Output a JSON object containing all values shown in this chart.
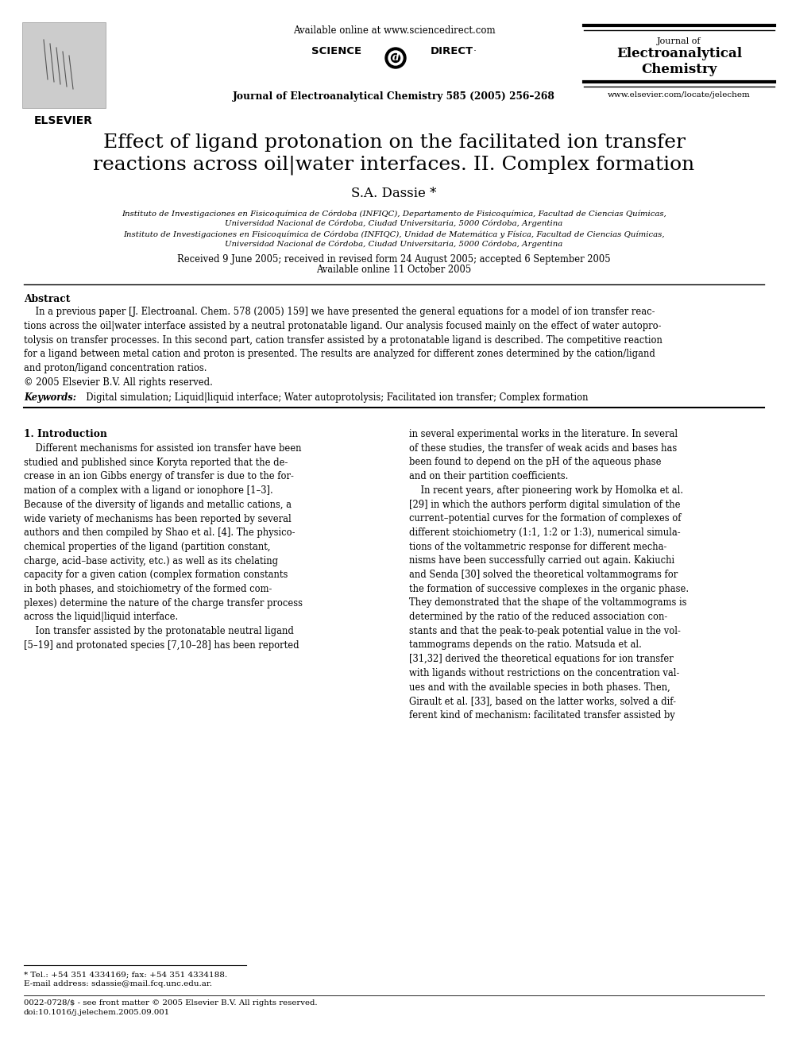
{
  "bg_color": "#ffffff",
  "title_line1": "Effect of ligand protonation on the facilitated ion transfer",
  "title_line2": "reactions across oil|water interfaces. II. Complex formation",
  "author": "S.A. Dassie *",
  "affil1_line1": "Instituto de Investigaciones en Fisicoquímica de Córdoba (INFIQC), Departamento de Fisicoquímica, Facultad de Ciencias Químicas,",
  "affil1_line2": "Universidad Nacional de Córdoba, Ciudad Universitaria, 5000 Córdoba, Argentina",
  "affil2_line1": "Instituto de Investigaciones en Fisicoquímica de Córdoba (INFIQC), Unidad de Matemática y Física, Facultad de Ciencias Químicas,",
  "affil2_line2": "Universidad Nacional de Córdoba, Ciudad Universitaria, 5000 Córdoba, Argentina",
  "received": "Received 9 June 2005; received in revised form 24 August 2005; accepted 6 September 2005",
  "available": "Available online 11 October 2005",
  "header_center": "Available online at www.sciencedirect.com",
  "header_journal_center": "Journal of Electroanalytical Chemistry 585 (2005) 256–268",
  "journal_name_line1": "Journal of",
  "journal_name_line2": "Electroanalytical",
  "journal_name_line3": "Chemistry",
  "website": "www.elsevier.com/locate/jelechem",
  "elsevier": "ELSEVIER",
  "abstract_title": "Abstract",
  "keywords_bold": "Keywords:",
  "keywords_rest": "  Digital simulation; Liquid|liquid interface; Water autoprotolysis; Facilitated ion transfer; Complex formation",
  "section1_title": "1. Introduction",
  "footnote1": "* Tel.: +54 351 4334169; fax: +54 351 4334188.",
  "footnote2": "E-mail address: sdassie@mail.fcq.unc.edu.ar.",
  "footnote3": "0022-0728/$ - see front matter © 2005 Elsevier B.V. All rights reserved.",
  "footnote4": "doi:10.1016/j.jelechem.2005.09.001"
}
